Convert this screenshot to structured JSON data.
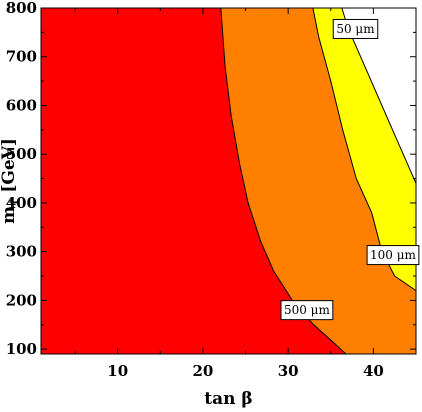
{
  "chart_data": {
    "type": "contour",
    "xlabel": "tan β",
    "ylabel": "m",
    "ylabel_subscript": "τ̃",
    "ylabel_unit": "[GeV]",
    "xlim": [
      1,
      45
    ],
    "ylim": [
      90,
      800
    ],
    "x_ticks": [
      10,
      20,
      30,
      40
    ],
    "y_ticks": [
      100,
      200,
      300,
      400,
      500,
      600,
      700,
      800
    ],
    "x_tick_labels": [
      "10",
      "20",
      "30",
      "40"
    ],
    "y_tick_labels": [
      "100",
      "200",
      "300",
      "400",
      "500",
      "600",
      "700",
      "800"
    ],
    "contours": [
      {
        "label": "500 μm",
        "points": [
          [
            36.8,
            90
          ],
          [
            33.0,
            150
          ],
          [
            30.5,
            200
          ],
          [
            28.3,
            260
          ],
          [
            26.8,
            320
          ],
          [
            25.3,
            400
          ],
          [
            24.3,
            480
          ],
          [
            23.3,
            580
          ],
          [
            22.6,
            680
          ],
          [
            22.1,
            800
          ]
        ]
      },
      {
        "label": "100 μm",
        "points": [
          [
            45.0,
            220
          ],
          [
            42.5,
            250
          ],
          [
            41.0,
            300
          ],
          [
            39.8,
            380
          ],
          [
            38.0,
            450
          ],
          [
            36.4,
            550
          ],
          [
            35.0,
            650
          ],
          [
            33.6,
            740
          ],
          [
            32.9,
            800
          ]
        ]
      },
      {
        "label": "50 μm",
        "points": [
          [
            45.0,
            440
          ],
          [
            44.0,
            480
          ],
          [
            42.0,
            560
          ],
          [
            40.0,
            640
          ],
          [
            38.5,
            700
          ],
          [
            37.0,
            760
          ],
          [
            36.3,
            800
          ]
        ]
      }
    ],
    "regions": [
      {
        "name": "left",
        "color": "#ff0000"
      },
      {
        "name": "middle",
        "color": "#ff8000"
      },
      {
        "name": "right",
        "color": "#ffff00"
      },
      {
        "name": "outer",
        "color": "#ffffff"
      }
    ],
    "labels": [
      {
        "text": "500 μm",
        "x": 32.2,
        "y": 180
      },
      {
        "text": "100 μm",
        "x": 42.3,
        "y": 293
      },
      {
        "text": "50 μm",
        "x": 37.9,
        "y": 757
      }
    ]
  }
}
